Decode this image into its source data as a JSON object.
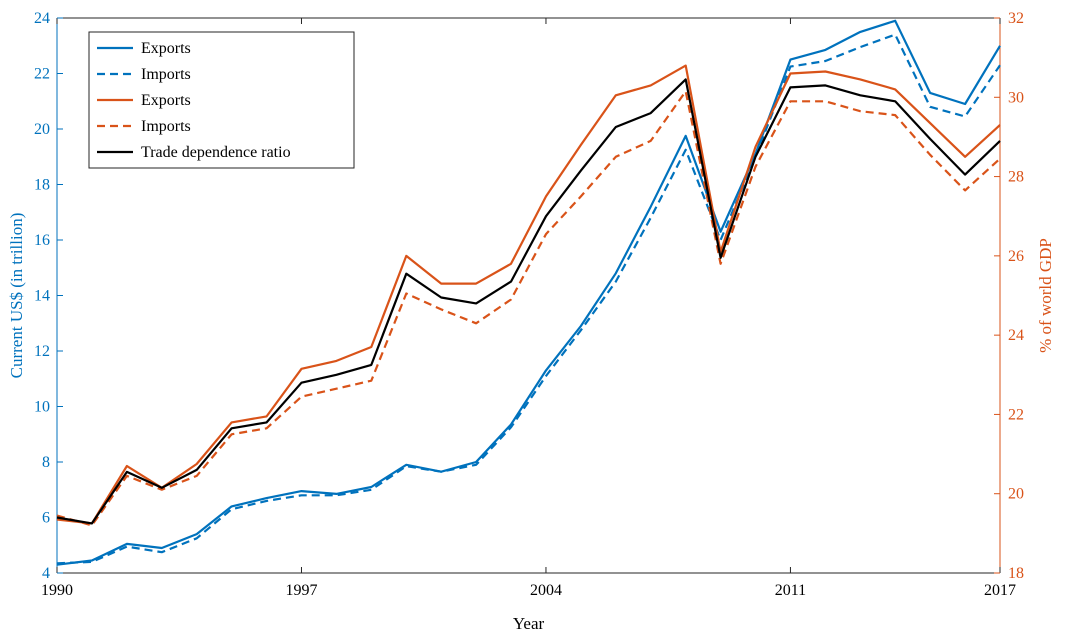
{
  "chart_data": {
    "type": "line",
    "title": "",
    "xlabel": "Year",
    "ylabel_left": "Current US$ (in trillion)",
    "ylabel_right": "% of world GDP",
    "xlim": [
      1990,
      2017
    ],
    "ylim_left": [
      4,
      24
    ],
    "ylim_right": [
      18,
      32
    ],
    "x_ticks": [
      1990,
      1997,
      2004,
      2011,
      2017
    ],
    "y_ticks_left": [
      4,
      6,
      8,
      10,
      12,
      14,
      16,
      18,
      20,
      22,
      24
    ],
    "y_ticks_right": [
      18,
      20,
      22,
      24,
      26,
      28,
      30,
      32
    ],
    "grid": false,
    "legend_position": "top-left",
    "colors": {
      "blue": "#0072bd",
      "orange": "#d95319",
      "black": "#000000"
    },
    "x": [
      1990,
      1991,
      1992,
      1993,
      1994,
      1995,
      1996,
      1997,
      1998,
      1999,
      2000,
      2001,
      2002,
      2003,
      2004,
      2005,
      2006,
      2007,
      2008,
      2009,
      2010,
      2011,
      2012,
      2013,
      2014,
      2015,
      2016,
      2017
    ],
    "series": [
      {
        "name": "Exports",
        "axis": "left",
        "color": "#0072bd",
        "dashed": false,
        "values": [
          4.3,
          4.45,
          5.05,
          4.9,
          5.4,
          6.4,
          6.7,
          6.95,
          6.85,
          7.1,
          7.9,
          7.65,
          8.0,
          9.35,
          11.3,
          12.9,
          14.8,
          17.2,
          19.75,
          16.3,
          19.1,
          22.5,
          22.85,
          23.5,
          23.9,
          21.3,
          20.9,
          23.0
        ]
      },
      {
        "name": "Imports",
        "axis": "left",
        "color": "#0072bd",
        "dashed": true,
        "values": [
          4.35,
          4.4,
          4.95,
          4.75,
          5.25,
          6.3,
          6.6,
          6.8,
          6.8,
          7.0,
          7.85,
          7.65,
          7.9,
          9.25,
          11.1,
          12.75,
          14.5,
          16.8,
          19.25,
          16.0,
          19.0,
          22.25,
          22.45,
          22.95,
          23.4,
          20.8,
          20.45,
          22.3
        ]
      },
      {
        "name": "Exports",
        "axis": "right",
        "color": "#d95319",
        "dashed": false,
        "values": [
          19.35,
          19.25,
          20.7,
          20.15,
          20.75,
          21.8,
          21.95,
          23.15,
          23.35,
          23.7,
          26.0,
          25.3,
          25.3,
          25.8,
          27.5,
          28.8,
          30.05,
          30.3,
          30.8,
          26.1,
          28.75,
          30.6,
          30.65,
          30.45,
          30.2,
          29.35,
          28.5,
          29.3
        ]
      },
      {
        "name": "Imports",
        "axis": "right",
        "color": "#d95319",
        "dashed": true,
        "values": [
          19.45,
          19.2,
          20.45,
          20.1,
          20.45,
          21.5,
          21.65,
          22.45,
          22.65,
          22.85,
          25.05,
          24.65,
          24.3,
          24.9,
          26.55,
          27.5,
          28.5,
          28.9,
          30.15,
          25.8,
          28.25,
          29.9,
          29.9,
          29.65,
          29.55,
          28.55,
          27.65,
          28.45
        ]
      },
      {
        "name": "Trade dependence ratio",
        "axis": "right",
        "color": "#000000",
        "dashed": false,
        "values": [
          19.4,
          19.25,
          20.55,
          20.15,
          20.6,
          21.65,
          21.8,
          22.8,
          23.0,
          23.25,
          25.55,
          24.95,
          24.8,
          25.35,
          27.0,
          28.15,
          29.25,
          29.6,
          30.45,
          25.95,
          28.5,
          30.25,
          30.3,
          30.05,
          29.9,
          28.95,
          28.05,
          28.9
        ]
      }
    ]
  }
}
